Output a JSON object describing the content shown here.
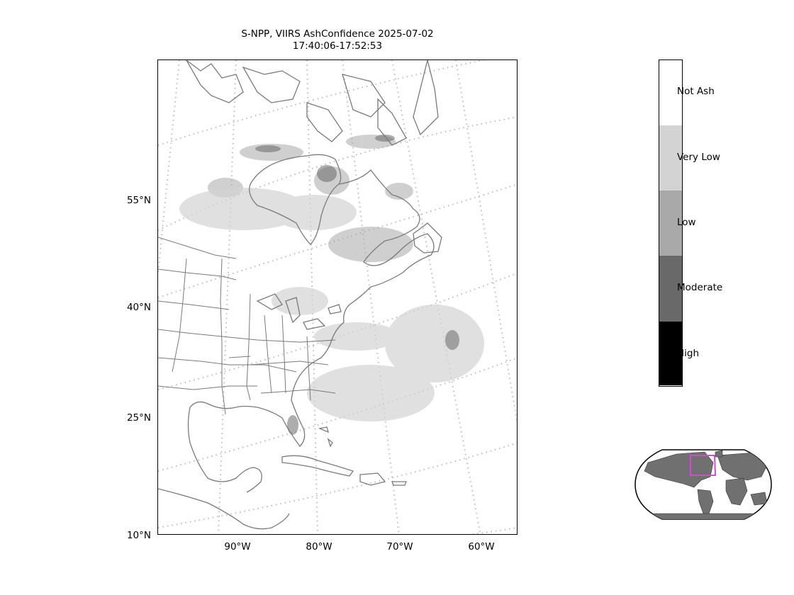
{
  "title": {
    "line1": "S-NPP, VIIRS AshConfidence 2025-07-02",
    "line2": "17:40:06-17:52:53"
  },
  "latitude_labels": [
    "55°N",
    "40°N",
    "25°N",
    "10°N"
  ],
  "longitude_labels": [
    "90°W",
    "80°W",
    "70°W",
    "60°W"
  ],
  "colorbar": {
    "classes": [
      {
        "label": "Not Ash",
        "color": "#ffffff"
      },
      {
        "label": "Very Low",
        "color": "#d3d3d3"
      },
      {
        "label": "Low",
        "color": "#a9a9a9"
      },
      {
        "label": "Moderate",
        "color": "#696969"
      },
      {
        "label": "High",
        "color": "#000000"
      }
    ]
  },
  "colors": {
    "coastline": "#7a7a7a",
    "graticule": "#bbbbbb",
    "inset_land": "#707070",
    "inset_box": "#e040e0"
  }
}
